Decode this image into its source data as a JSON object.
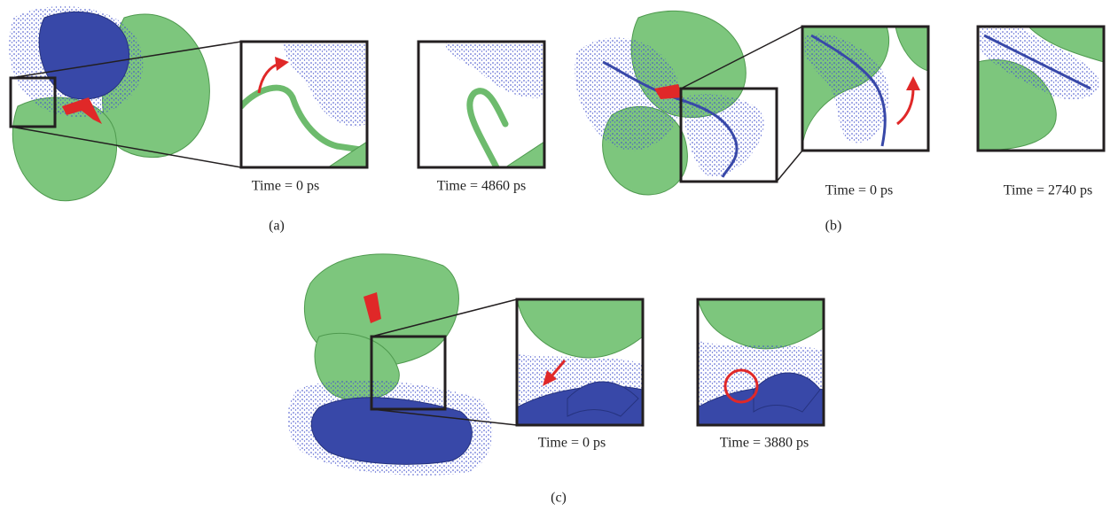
{
  "panels": [
    {
      "label": "(a)",
      "captions": [
        "Time = 0 ps",
        "Time = 4860 ps"
      ]
    },
    {
      "label": "(b)",
      "captions": [
        "Time = 0 ps",
        "Time = 2740 ps"
      ]
    },
    {
      "label": "(c)",
      "captions": [
        "Time = 0 ps",
        "Time = 3880 ps"
      ]
    }
  ]
}
